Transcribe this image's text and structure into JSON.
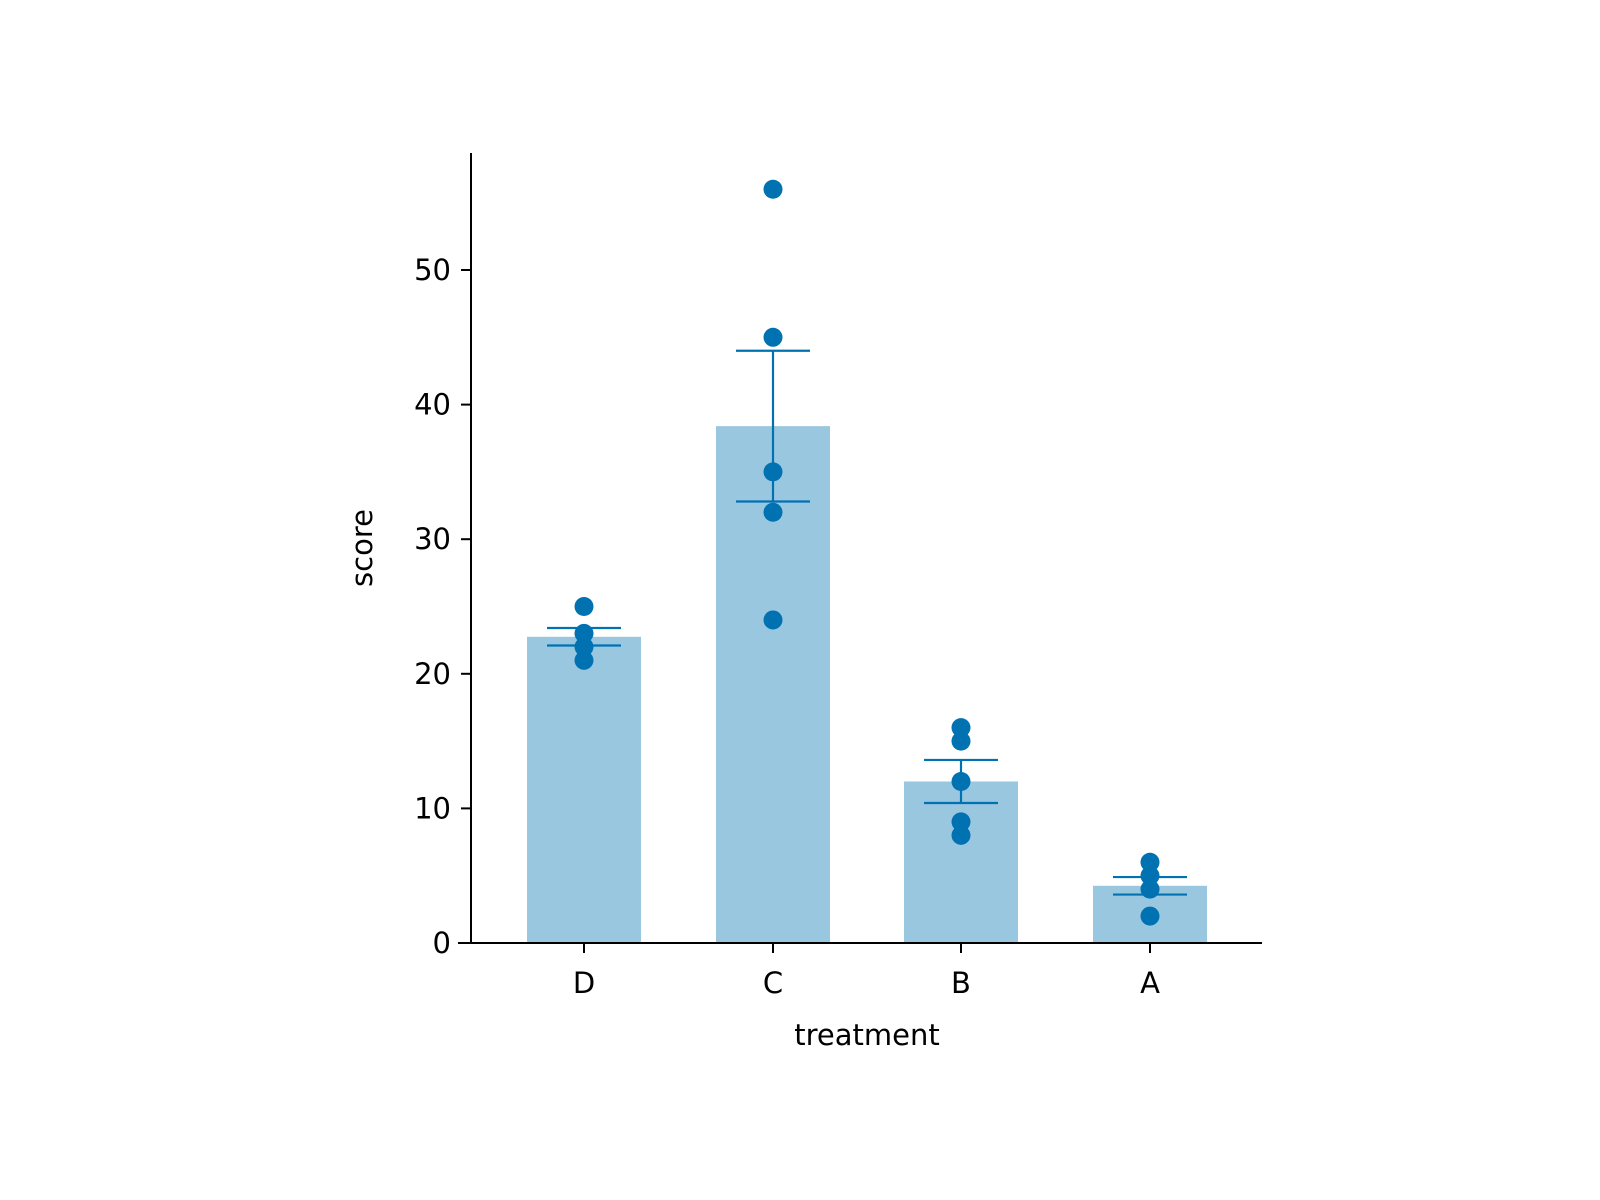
{
  "chart_data": {
    "type": "bar",
    "title": "",
    "xlabel": "treatment",
    "ylabel": "score",
    "categories": [
      "D",
      "C",
      "B",
      "A"
    ],
    "values": [
      22.75,
      38.4,
      12.0,
      4.25
    ],
    "error_bars": [
      {
        "low": 22.1,
        "high": 23.4
      },
      {
        "low": 32.8,
        "high": 44.0
      },
      {
        "low": 10.4,
        "high": 13.6
      },
      {
        "low": 3.6,
        "high": 4.9
      }
    ],
    "points": [
      [
        25,
        23,
        22,
        21
      ],
      [
        56,
        45,
        35,
        32,
        24
      ],
      [
        16,
        15,
        12,
        9,
        8
      ],
      [
        6,
        5,
        4,
        2
      ]
    ],
    "ylim": [
      0,
      58.8
    ],
    "yticks": [
      0,
      10,
      20,
      30,
      40,
      50
    ],
    "grid": false,
    "legend": false,
    "colors": {
      "bar": "#9ac7e0",
      "points": "#0072b2",
      "error_bars": "#0072b2",
      "axis": "#000000"
    }
  }
}
